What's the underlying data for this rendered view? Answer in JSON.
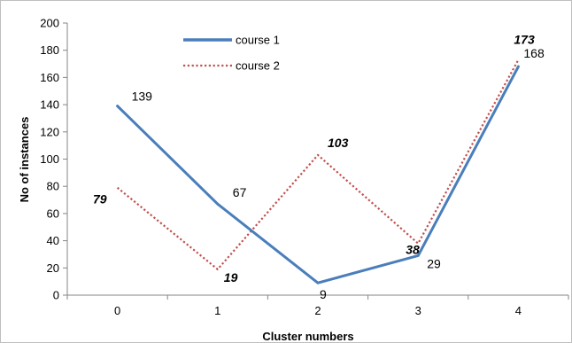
{
  "chart_data": {
    "type": "line",
    "categories": [
      "0",
      "1",
      "2",
      "3",
      "4"
    ],
    "xlabel": "Cluster numbers",
    "ylabel": "No of instances",
    "ylim": [
      0,
      200
    ],
    "yticks": [
      "0",
      "20",
      "40",
      "60",
      "80",
      "100",
      "120",
      "140",
      "160",
      "180",
      "200"
    ],
    "grid": false,
    "legend_position": "top-center",
    "series": [
      {
        "name": "course 1",
        "values": [
          139,
          67,
          9,
          29,
          168
        ],
        "data_labels": [
          "139",
          "67",
          "9",
          "29",
          "168"
        ],
        "color": "#4a7ebb",
        "style": "solid"
      },
      {
        "name": "course 2",
        "values": [
          79,
          19,
          103,
          38,
          173
        ],
        "data_labels": [
          "79",
          "19",
          "103",
          "38",
          "173"
        ],
        "color": "#c0504d",
        "style": "dotted"
      }
    ]
  }
}
